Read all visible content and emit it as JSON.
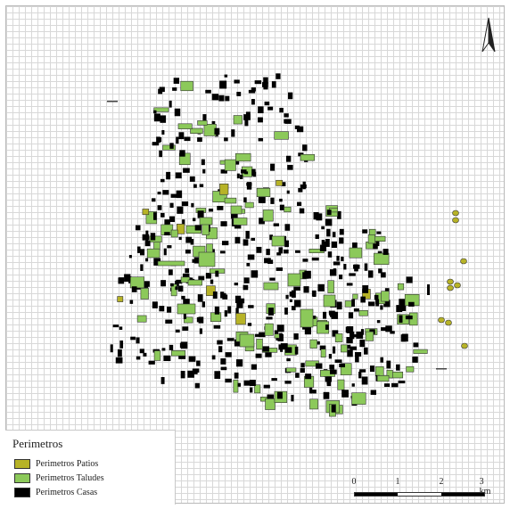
{
  "legend": {
    "title": "Perimetros",
    "items": [
      {
        "label": "Perimetros Patios",
        "color": "#b7b327"
      },
      {
        "label": "Perimetros Taludes",
        "color": "#8cc95a"
      },
      {
        "label": "Perimetros Casas",
        "color": "#000000"
      }
    ]
  },
  "scale_bar": {
    "ticks": [
      "0",
      "1",
      "2",
      "3 km"
    ],
    "segment_colors": [
      "#000000",
      "#ffffff",
      "#000000"
    ]
  },
  "north_arrow": {
    "icon": "north-arrow-icon"
  },
  "colors": {
    "grid": "#d8d8d8",
    "casas": "#000000",
    "taludes": "#8cc95a",
    "patios": "#b7b327"
  }
}
